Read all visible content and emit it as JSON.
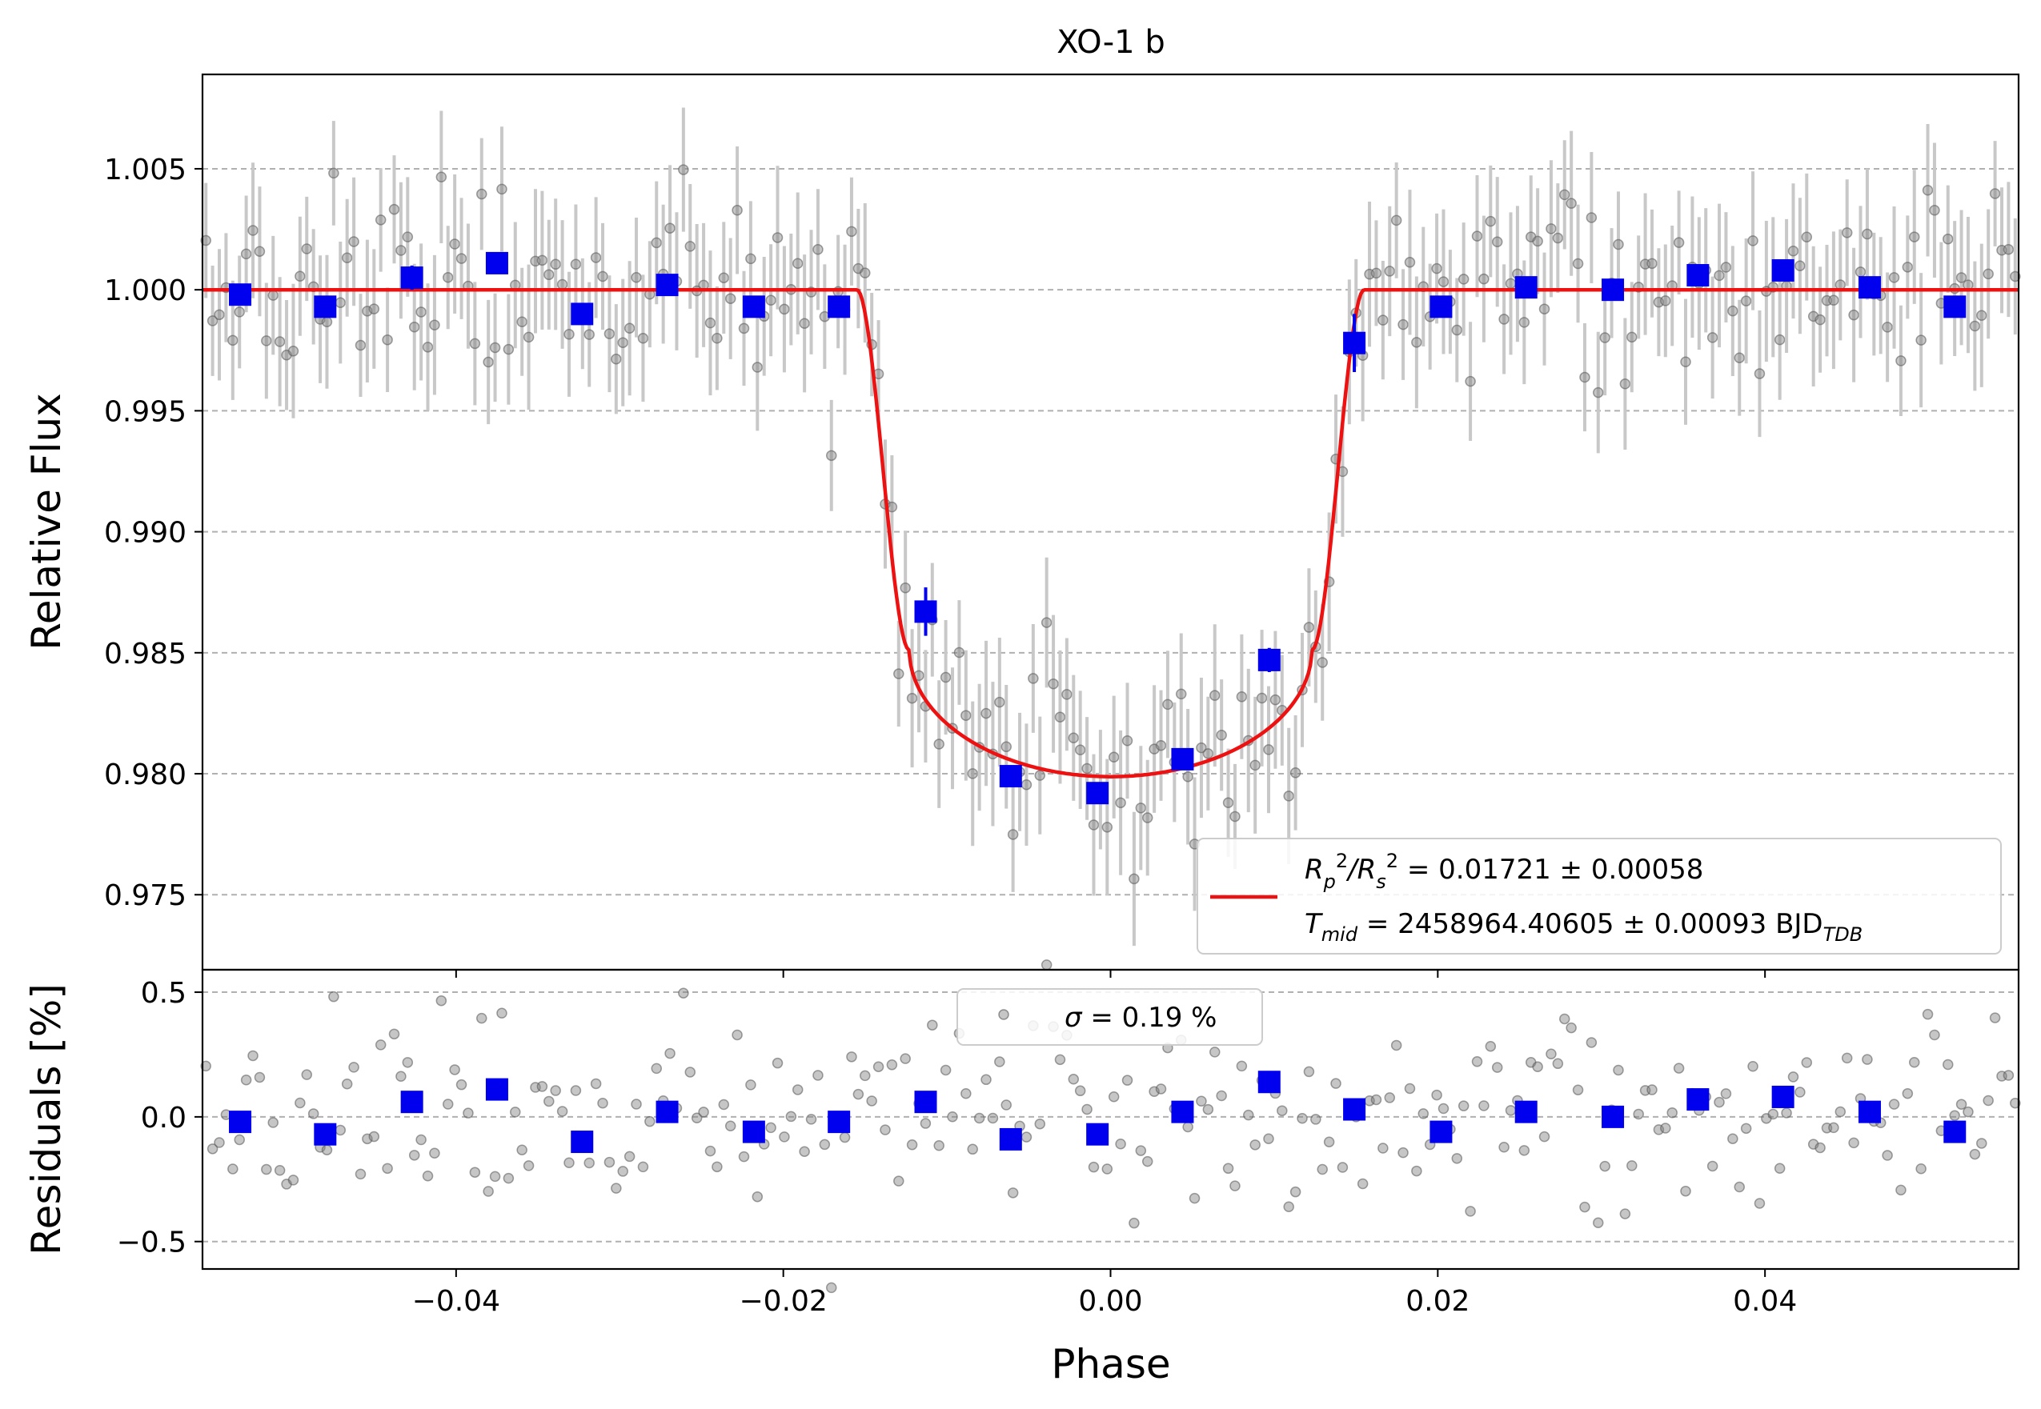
{
  "chart_data": [
    {
      "type": "scatter",
      "title": "XO-1 b",
      "xlabel": "",
      "ylabel": "Relative Flux",
      "xlim": [
        -0.0555,
        0.0555
      ],
      "ylim": [
        0.9719,
        1.0089
      ],
      "yticks": [
        0.975,
        0.98,
        0.985,
        0.99,
        0.995,
        1.0,
        1.005
      ],
      "ytick_labels": [
        "0.975",
        "0.980",
        "0.985",
        "0.990",
        "0.995",
        "1.000",
        "1.005"
      ],
      "grid": "horizontal dashed",
      "legend": {
        "placement": "lower-right",
        "line1_main": "R",
        "line1_sub_a": "p",
        "line1_sup_a": "2",
        "line1_slash": "/R",
        "line1_sub_b": "s",
        "line1_sup_b": "2",
        "line1_value": " = 0.01721 ± 0.00058",
        "line2_main": "T",
        "line2_sub": "mid",
        "line2_value": " = 2458964.40605 ± 0.00093 BJD",
        "line2_unit_sub": "TDB"
      },
      "model": {
        "color": "#ee1111",
        "depth": 0.02012,
        "t_inner": 0.0123,
        "t_outer": 0.0155
      },
      "binned": {
        "color": "#0000ee",
        "x": [
          -0.0532,
          -0.048,
          -0.0427,
          -0.0375,
          -0.0323,
          -0.0271,
          -0.0218,
          -0.0166,
          -0.0113,
          -0.0061,
          -0.0008,
          0.0044,
          0.0097,
          0.0149,
          0.0202,
          0.0254,
          0.0307,
          0.0359,
          0.0411,
          0.0464,
          0.0516
        ],
        "y": [
          0.9998,
          0.9993,
          1.0005,
          1.0011,
          0.999,
          1.0002,
          0.9993,
          0.9993,
          0.9867,
          0.9799,
          0.9792,
          0.9806,
          0.9847,
          0.9978,
          0.9993,
          1.0001,
          1.0,
          1.0006,
          1.0008,
          1.0001,
          0.9993
        ],
        "err": [
          0.0004,
          0.0004,
          0.0005,
          0.0004,
          0.0004,
          0.0004,
          0.0004,
          0.0004,
          0.001,
          0.0004,
          0.0004,
          0.0004,
          0.0005,
          0.0012,
          0.0004,
          0.0004,
          0.0004,
          0.0004,
          0.0004,
          0.0004,
          0.0004
        ]
      },
      "raw_points": {
        "color": "#808080",
        "count": 270,
        "typical_error": 0.0025,
        "scatter_sigma": 0.0019
      }
    },
    {
      "type": "scatter",
      "title": "",
      "xlabel": "Phase",
      "ylabel": "Residuals [%]",
      "xlim": [
        -0.0555,
        0.0555
      ],
      "ylim": [
        -0.61,
        0.59
      ],
      "yticks": [
        -0.5,
        0.0,
        0.5
      ],
      "ytick_labels": [
        "−0.5",
        "0.0",
        "0.5"
      ],
      "xticks": [
        -0.04,
        -0.02,
        0.0,
        0.02,
        0.04
      ],
      "xtick_labels": [
        "−0.04",
        "−0.02",
        "0.00",
        "0.02",
        "0.04"
      ],
      "grid": "horizontal dashed",
      "legend": {
        "placement": "top-center",
        "sigma_symbol": "σ",
        "sigma_text": " = 0.19 %"
      },
      "binned": {
        "color": "#0000ee",
        "x": [
          -0.0532,
          -0.048,
          -0.0427,
          -0.0375,
          -0.0323,
          -0.0271,
          -0.0218,
          -0.0166,
          -0.0113,
          -0.0061,
          -0.0008,
          0.0044,
          0.0097,
          0.0149,
          0.0202,
          0.0254,
          0.0307,
          0.0359,
          0.0411,
          0.0464,
          0.0516
        ],
        "y": [
          -0.02,
          -0.07,
          0.06,
          0.11,
          -0.1,
          0.02,
          -0.06,
          -0.02,
          0.06,
          -0.09,
          -0.07,
          0.02,
          0.14,
          0.03,
          -0.06,
          0.02,
          0.0,
          0.07,
          0.08,
          0.02,
          -0.06
        ]
      }
    }
  ]
}
